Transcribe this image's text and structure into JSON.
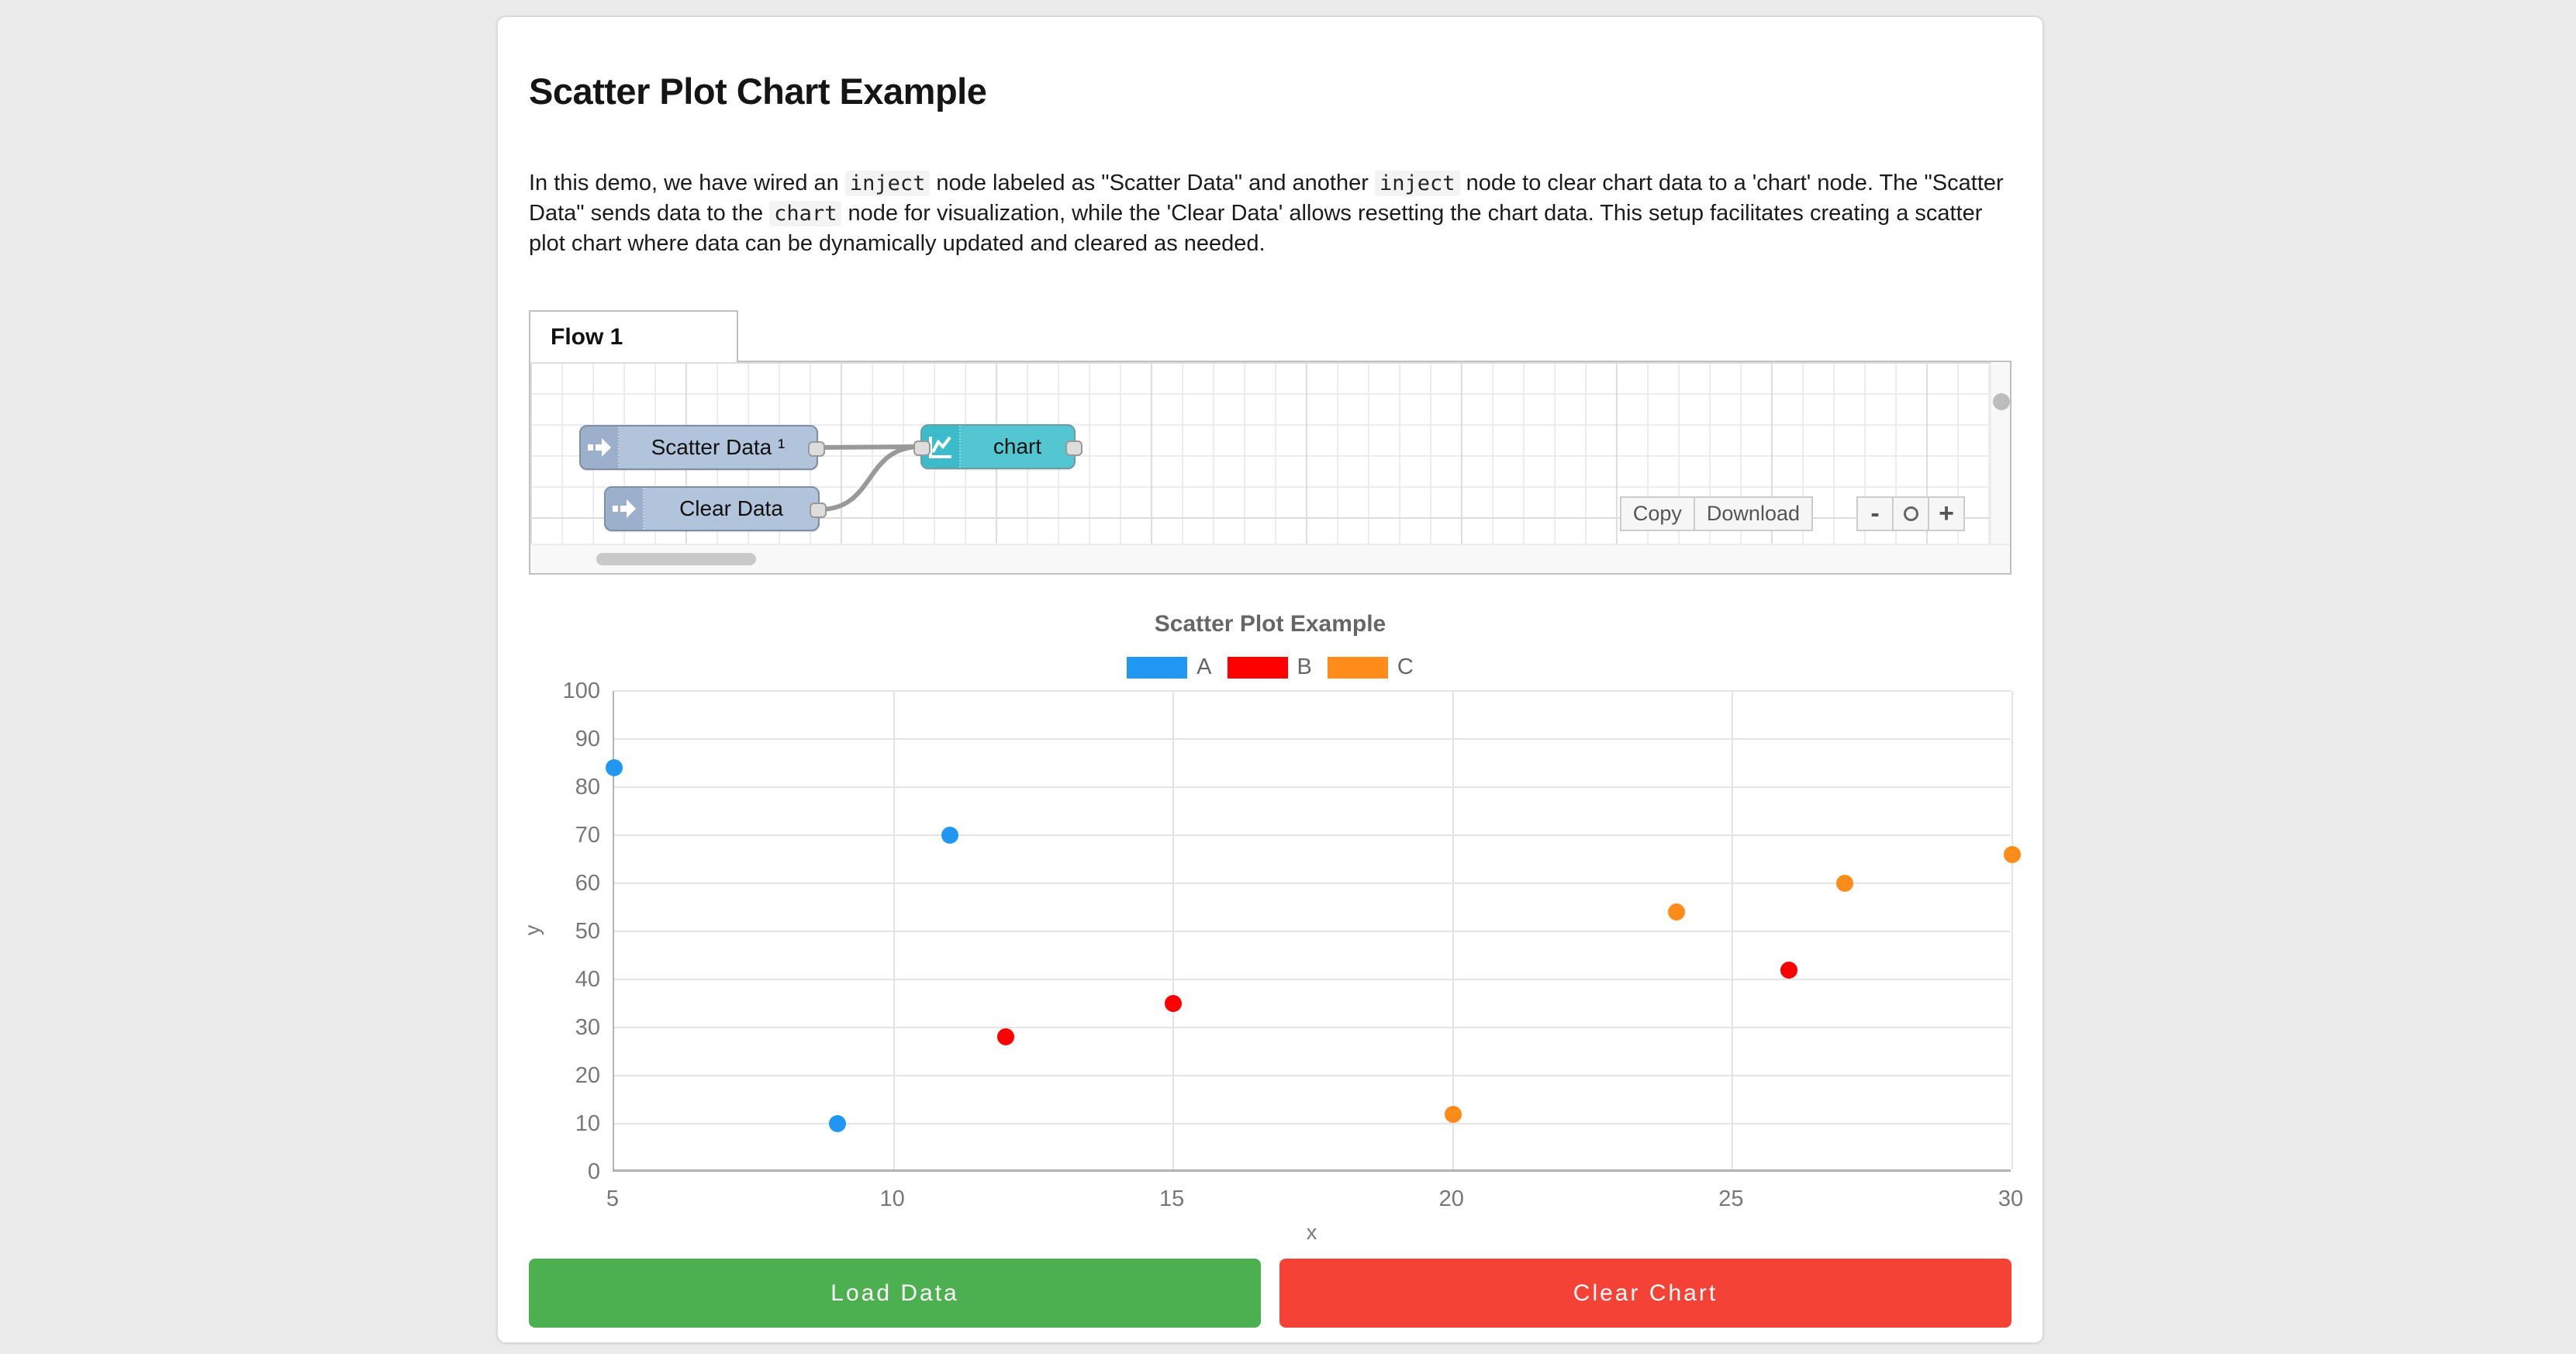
{
  "page": {
    "background": "#ebebeb"
  },
  "header": {
    "title": "Scatter Plot Chart Example",
    "description_segments": [
      {
        "code": false,
        "text": "In this demo, we have wired an "
      },
      {
        "code": true,
        "text": "inject"
      },
      {
        "code": false,
        "text": " node labeled as \"Scatter Data\" and another "
      },
      {
        "code": true,
        "text": "inject"
      },
      {
        "code": false,
        "text": " node to clear chart data to a 'chart' node. The \"Scatter Data\" sends data to the "
      },
      {
        "code": true,
        "text": "chart"
      },
      {
        "code": false,
        "text": " node for visualization, while the 'Clear Data' allows resetting the chart data. This setup facilitates creating a scatter plot chart where data can be dynamically updated and cleared as needed."
      }
    ]
  },
  "flow": {
    "tab_label": "Flow 1",
    "nodes": [
      {
        "label": "Scatter Data ¹",
        "type": "inject"
      },
      {
        "label": "Clear Data",
        "type": "inject"
      },
      {
        "label": "chart",
        "type": "chart"
      }
    ],
    "toolbar": {
      "copy_label": "Copy",
      "download_label": "Download"
    },
    "zoom": {
      "out_label": "-",
      "in_label": "+",
      "reset_icon": "circle-icon"
    },
    "colors": {
      "inject_node_body": "#b2c3dc",
      "inject_icon_box": "#9cb0cb",
      "chart_node_body": "#52c7d2",
      "chart_icon_box": "#3cbcca",
      "wire": "#999999",
      "port": "#dddddd"
    }
  },
  "chart_data": {
    "type": "scatter",
    "title": "Scatter Plot Example",
    "xlabel": "x",
    "ylabel": "y",
    "xlim": [
      5,
      30
    ],
    "ylim": [
      0,
      100
    ],
    "x_ticks": [
      5,
      10,
      15,
      20,
      25,
      30
    ],
    "y_ticks": [
      0,
      10,
      20,
      30,
      40,
      50,
      60,
      70,
      80,
      90,
      100
    ],
    "grid": true,
    "legend_position": "top",
    "series": [
      {
        "name": "A",
        "color": "#2196f3",
        "points": [
          [
            5,
            84
          ],
          [
            9,
            10
          ],
          [
            11,
            70
          ]
        ]
      },
      {
        "name": "B",
        "color": "#ff0000",
        "points": [
          [
            12,
            28
          ],
          [
            15,
            35
          ],
          [
            26,
            42
          ]
        ]
      },
      {
        "name": "C",
        "color": "#ff8c1a",
        "points": [
          [
            20,
            12
          ],
          [
            24,
            54
          ],
          [
            27,
            60
          ],
          [
            30,
            66
          ]
        ]
      }
    ]
  },
  "actions": {
    "load_label": "Load Data",
    "load_color": "#4caf50",
    "clear_label": "Clear Chart",
    "clear_color": "#f44336"
  }
}
